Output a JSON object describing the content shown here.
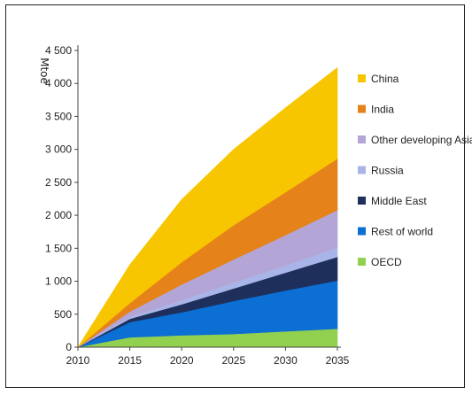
{
  "chart_data": {
    "type": "area",
    "stacked": true,
    "ylabel": "Mtoe",
    "xlabel": "",
    "x": [
      2010,
      2015,
      2020,
      2025,
      2030,
      2035
    ],
    "xticks": [
      "2010",
      "2015",
      "2020",
      "2025",
      "2030",
      "2035"
    ],
    "ylim": [
      0,
      4500
    ],
    "yticks": [
      "0",
      "500",
      "1 000",
      "1 500",
      "2 000",
      "2 500",
      "3 000",
      "3 500",
      "4 000",
      "4 500"
    ],
    "grid": false,
    "legend_position": "right",
    "series": [
      {
        "name": "OECD",
        "color": "#92d050",
        "values": [
          0,
          150,
          180,
          200,
          240,
          280
        ]
      },
      {
        "name": "Rest of world",
        "color": "#0b6fd3",
        "values": [
          0,
          230,
          350,
          500,
          620,
          730
        ]
      },
      {
        "name": "Middle East",
        "color": "#1f2f5c",
        "values": [
          0,
          50,
          120,
          190,
          270,
          360
        ]
      },
      {
        "name": "Russia",
        "color": "#a9b5e8",
        "values": [
          0,
          30,
          60,
          90,
          110,
          140
        ]
      },
      {
        "name": "Other developing Asia",
        "color": "#b3a6d6",
        "values": [
          0,
          80,
          240,
          350,
          460,
          570
        ]
      },
      {
        "name": "India",
        "color": "#e5821a",
        "values": [
          0,
          130,
          340,
          520,
          650,
          780
        ]
      },
      {
        "name": "China",
        "color": "#f7c600",
        "values": [
          0,
          580,
          950,
          1150,
          1280,
          1380
        ]
      }
    ]
  }
}
